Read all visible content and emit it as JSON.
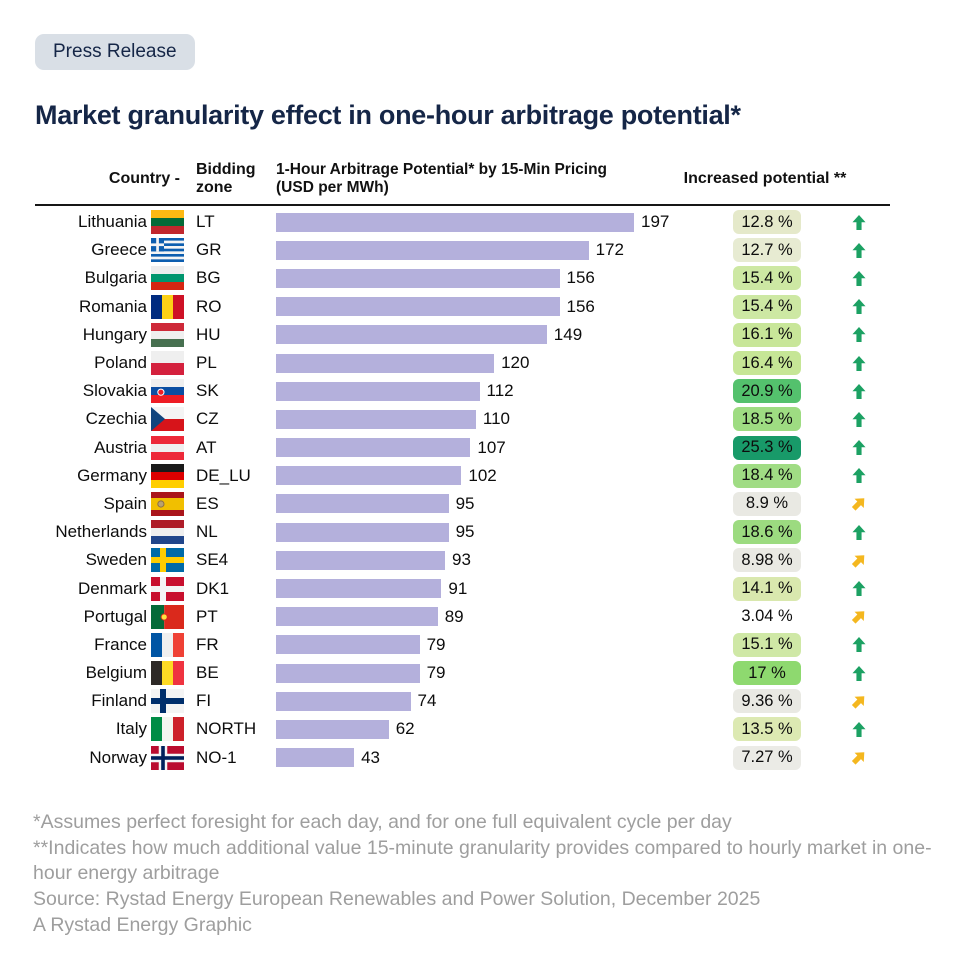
{
  "badge": {
    "label": "Press Release"
  },
  "title": "Market granularity effect in one-hour arbitrage potential*",
  "table": {
    "headers": {
      "country": "Country -",
      "zone": "Bidding zone",
      "bar_line1": "1-Hour Arbitrage Potential* by 15-Min Pricing",
      "bar_line2": "(USD per MWh)",
      "increase": "Increased potential **"
    }
  },
  "colors": {
    "navy": "#152647",
    "chip_background": "#d9dfe6",
    "bar": "#b4b0dc",
    "arrow_up_green": "#1ca163",
    "arrow_diagonal_amber": "#f4b71f"
  },
  "rows": [
    {
      "country": "Lithuania",
      "zone": "LT",
      "value": 197,
      "pct": "12.8 %",
      "badge": "#e5e9ca",
      "arrow": "up",
      "flag": {
        "kind": "h",
        "colors": [
          "#FDB913",
          "#046A38",
          "#C1272D"
        ]
      }
    },
    {
      "country": "Greece",
      "zone": "GR",
      "value": 172,
      "pct": "12.7 %",
      "badge": "#e7ebd2",
      "arrow": "up",
      "flag": {
        "kind": "greece"
      }
    },
    {
      "country": "Bulgaria",
      "zone": "BG",
      "value": 156,
      "pct": "15.4 %",
      "badge": "#cde8a3",
      "arrow": "up",
      "flag": {
        "kind": "h",
        "colors": [
          "#EDEDED",
          "#00966E",
          "#D62612"
        ]
      }
    },
    {
      "country": "Romania",
      "zone": "RO",
      "value": 156,
      "pct": "15.4 %",
      "badge": "#cde8a3",
      "arrow": "up",
      "flag": {
        "kind": "v",
        "colors": [
          "#002B7F",
          "#FCD116",
          "#CE1126"
        ]
      }
    },
    {
      "country": "Hungary",
      "zone": "HU",
      "value": 149,
      "pct": "16.1 %",
      "badge": "#c8e699",
      "arrow": "up",
      "flag": {
        "kind": "h",
        "colors": [
          "#CE2939",
          "#EFEFEF",
          "#477050"
        ]
      }
    },
    {
      "country": "Poland",
      "zone": "PL",
      "value": 120,
      "pct": "16.4 %",
      "badge": "#c6e696",
      "arrow": "up",
      "flag": {
        "kind": "h",
        "colors": [
          "#EFEFEF",
          "#D4213D"
        ]
      }
    },
    {
      "country": "Slovakia",
      "zone": "SK",
      "value": 112,
      "pct": "20.9 %",
      "badge": "#54c16d",
      "arrow": "up",
      "flag": {
        "kind": "h",
        "colors": [
          "#EFEFEF",
          "#0B4EA2",
          "#EE1C25"
        ],
        "emblem": [
          0.3,
          0.55,
          "#EE1C25",
          "#FFFFFF"
        ]
      }
    },
    {
      "country": "Czechia",
      "zone": "CZ",
      "value": 110,
      "pct": "18.5 %",
      "badge": "#9edc82",
      "arrow": "up",
      "flag": {
        "kind": "cz"
      }
    },
    {
      "country": "Austria",
      "zone": "AT",
      "value": 107,
      "pct": "25.3 %",
      "badge": "#189a69",
      "arrow": "up",
      "flag": {
        "kind": "h",
        "colors": [
          "#ED2939",
          "#EFEFEF",
          "#ED2939"
        ]
      }
    },
    {
      "country": "Germany",
      "zone": "DE_LU",
      "value": 102,
      "pct": "18.4 %",
      "badge": "#a0dc84",
      "arrow": "up",
      "flag": {
        "kind": "h",
        "colors": [
          "#1A1A1A",
          "#DD0000",
          "#FFCE00"
        ]
      }
    },
    {
      "country": "Spain",
      "zone": "ES",
      "value": 95,
      "pct": "8.9 %",
      "badge": "#e9e9e3",
      "arrow": "diag",
      "flag": {
        "kind": "h",
        "colors": [
          "#AA151B",
          "#F1BF00",
          "#AA151B"
        ],
        "ratios": [
          1,
          2,
          1
        ],
        "emblem": [
          0.3,
          0.5,
          "#B9A271",
          "#8B6F47"
        ]
      }
    },
    {
      "country": "Netherlands",
      "zone": "NL",
      "value": 95,
      "pct": "18.6 %",
      "badge": "#9cdb80",
      "arrow": "up",
      "flag": {
        "kind": "h",
        "colors": [
          "#AE1C28",
          "#EFEFEF",
          "#21468B"
        ]
      }
    },
    {
      "country": "Sweden",
      "zone": "SE4",
      "value": 93,
      "pct": "8.98 %",
      "badge": "#e9e9e3",
      "arrow": "diag",
      "flag": {
        "kind": "nordic",
        "bg": "#006AA7",
        "cross": "#FECC00"
      }
    },
    {
      "country": "Denmark",
      "zone": "DK1",
      "value": 91,
      "pct": "14.1 %",
      "badge": "#d9e8ae",
      "arrow": "up",
      "flag": {
        "kind": "nordic",
        "bg": "#C8102E",
        "cross": "#F4F4F4"
      }
    },
    {
      "country": "Portugal",
      "zone": "PT",
      "value": 89,
      "pct": "3.04 %",
      "badge": "none",
      "arrow": "diag",
      "flag": {
        "kind": "v",
        "colors": [
          "#046A38",
          "#DA291C"
        ],
        "ratios": [
          2,
          3
        ],
        "emblem": [
          0.4,
          0.5,
          "#FFE340",
          "#DA291C"
        ]
      }
    },
    {
      "country": "France",
      "zone": "FR",
      "value": 79,
      "pct": "15.1 %",
      "badge": "#cfe8a6",
      "arrow": "up",
      "flag": {
        "kind": "v",
        "colors": [
          "#0055A4",
          "#EFEFEF",
          "#EF4135"
        ]
      }
    },
    {
      "country": "Belgium",
      "zone": "BE",
      "value": 79,
      "pct": "17 %",
      "badge": "#8ed96f",
      "arrow": "up",
      "flag": {
        "kind": "v",
        "colors": [
          "#2D2926",
          "#FDDA24",
          "#EF3340"
        ]
      }
    },
    {
      "country": "Finland",
      "zone": "FI",
      "value": 74,
      "pct": "9.36 %",
      "badge": "#e9e9e3",
      "arrow": "diag",
      "flag": {
        "kind": "nordic",
        "bg": "#F4F4F4",
        "cross": "#002F6C"
      }
    },
    {
      "country": "Italy",
      "zone": "NORTH",
      "value": 62,
      "pct": "13.5 %",
      "badge": "#dce9b2",
      "arrow": "up",
      "flag": {
        "kind": "v",
        "colors": [
          "#008C45",
          "#F4F5F0",
          "#CD212A"
        ]
      }
    },
    {
      "country": "Norway",
      "zone": "NO-1",
      "value": 43,
      "pct": "7.27 %",
      "badge": "#ebebe6",
      "arrow": "diag",
      "flag": {
        "kind": "nordic",
        "bg": "#BA0C2F",
        "cross": "#F4F4F4",
        "inner": "#00205B"
      }
    }
  ],
  "chart_data": {
    "type": "bar",
    "orientation": "horizontal",
    "title": "Market granularity effect in one-hour arbitrage potential*",
    "value_axis_label": "1-Hour Arbitrage Potential* by 15-Min Pricing (USD per MWh)",
    "secondary_column_label": "Increased potential **",
    "xlim": [
      0,
      197
    ],
    "grid": "off",
    "legend": "none",
    "bar_color": "#b4b0dc",
    "categories": [
      "Lithuania",
      "Greece",
      "Bulgaria",
      "Romania",
      "Hungary",
      "Poland",
      "Slovakia",
      "Czechia",
      "Austria",
      "Germany",
      "Spain",
      "Netherlands",
      "Sweden",
      "Denmark",
      "Portugal",
      "France",
      "Belgium",
      "Finland",
      "Italy",
      "Norway"
    ],
    "bidding_zones": [
      "LT",
      "GR",
      "BG",
      "RO",
      "HU",
      "PL",
      "SK",
      "CZ",
      "AT",
      "DE_LU",
      "ES",
      "NL",
      "SE4",
      "DK1",
      "PT",
      "FR",
      "BE",
      "FI",
      "NORTH",
      "NO-1"
    ],
    "values": [
      197,
      172,
      156,
      156,
      149,
      120,
      112,
      110,
      107,
      102,
      95,
      95,
      93,
      91,
      89,
      79,
      79,
      74,
      62,
      43
    ],
    "increased_potential_pct": [
      12.8,
      12.7,
      15.4,
      15.4,
      16.1,
      16.4,
      20.9,
      18.5,
      25.3,
      18.4,
      8.9,
      18.6,
      8.98,
      14.1,
      3.04,
      15.1,
      17,
      9.36,
      13.5,
      7.27
    ]
  },
  "footnotes": [
    "*Assumes perfect foresight for each day, and for one full equivalent cycle per day",
    "**Indicates how much additional value 15-minute granularity provides compared to hourly market in one-hour energy arbitrage",
    "Source: Rystad Energy European Renewables and Power Solution, December 2025",
    "A Rystad Energy Graphic"
  ]
}
